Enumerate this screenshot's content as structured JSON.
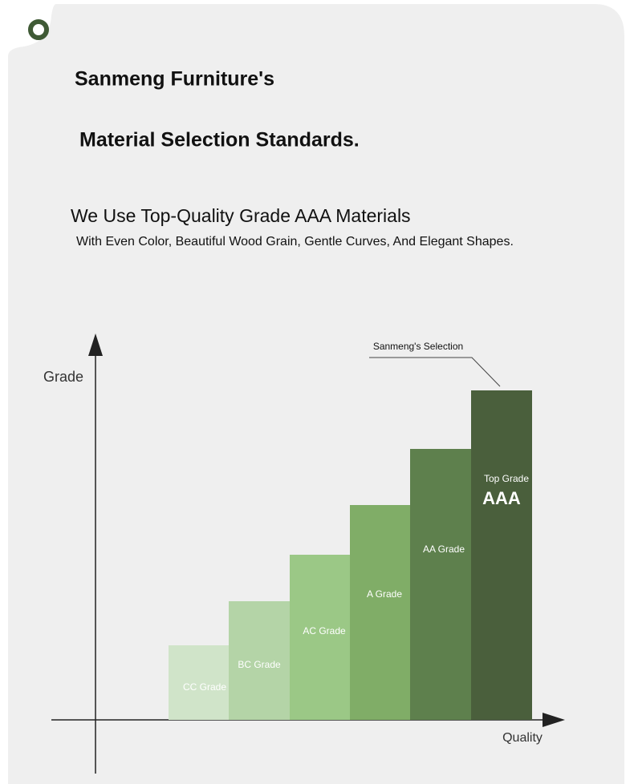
{
  "header": {
    "title_line1": "Sanmeng Furniture's",
    "title_line2": "Material Selection Standards.",
    "headline": "We Use Top-Quality Grade AAA Materials",
    "subline": "With Even Color, Beautiful Wood Grain, Gentle Curves, And Elegant Shapes."
  },
  "diagram": {
    "y_axis_label": "Grade",
    "x_axis_label": "Quality",
    "callout": "Sanmeng's Selection",
    "steps": [
      {
        "label": "CC Grade"
      },
      {
        "label": "BC Grade"
      },
      {
        "label": "AC Grade"
      },
      {
        "label": "A Grade"
      },
      {
        "label": "AA Grade"
      },
      {
        "label": "Top Grade",
        "badge": "AAA"
      }
    ]
  }
}
